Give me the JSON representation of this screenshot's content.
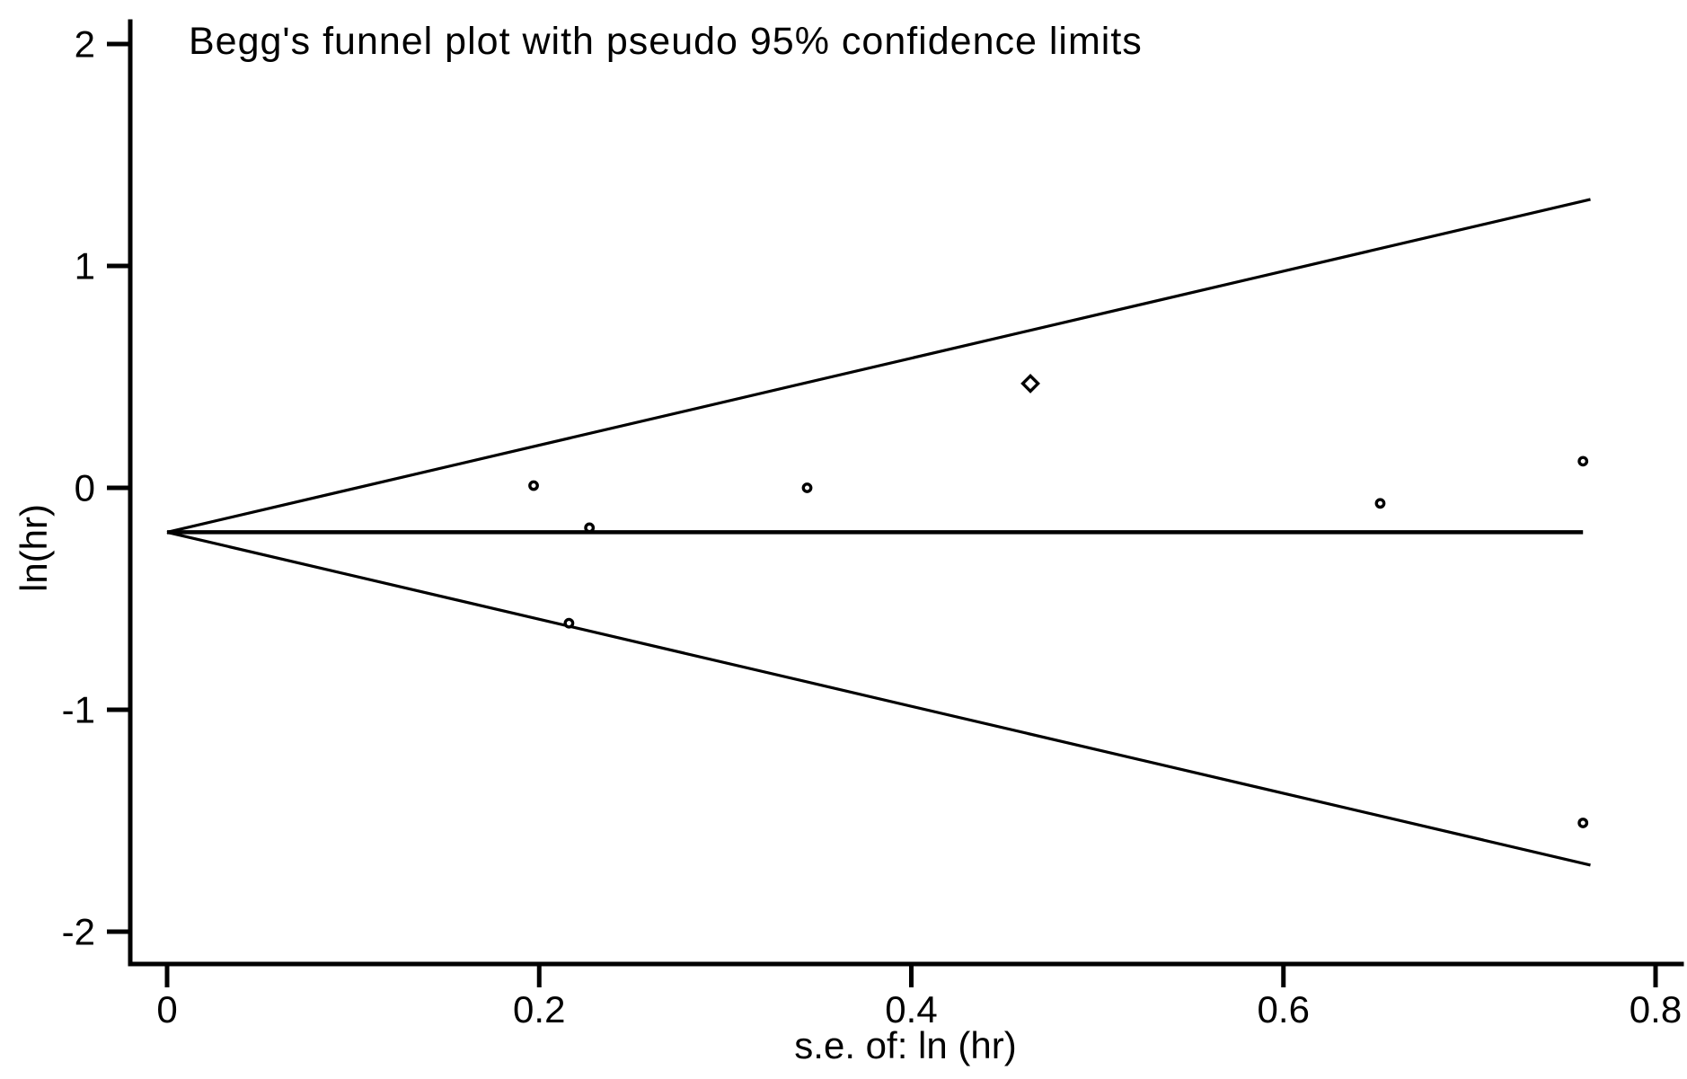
{
  "chart_data": {
    "type": "scatter",
    "title": "Begg's funnel plot with pseudo 95% confidence limits",
    "xlabel": "s.e. of: ln (hr)",
    "ylabel": "ln(hr)",
    "xlim": [
      -0.02,
      0.815
    ],
    "ylim": [
      -2.15,
      2.1
    ],
    "grid": false,
    "legend": "none",
    "x_ticks": {
      "values": [
        0,
        0.2,
        0.4,
        0.6,
        0.8
      ],
      "labels": [
        "0",
        "0.2",
        "0.4",
        "0.6",
        "0.8"
      ]
    },
    "y_ticks": {
      "values": [
        2,
        1,
        0,
        -1,
        -2
      ],
      "labels": [
        "2",
        "1",
        "0",
        "-1",
        "-2"
      ]
    },
    "points": [
      {
        "se": 0.197,
        "lnhr": 0.01,
        "marker": "circle"
      },
      {
        "se": 0.216,
        "lnhr": -0.61,
        "marker": "circle"
      },
      {
        "se": 0.227,
        "lnhr": -0.18,
        "marker": "circle"
      },
      {
        "se": 0.344,
        "lnhr": 0.0,
        "marker": "circle"
      },
      {
        "se": 0.464,
        "lnhr": 0.47,
        "marker": "diamond"
      },
      {
        "se": 0.652,
        "lnhr": -0.07,
        "marker": "circle"
      },
      {
        "se": 0.761,
        "lnhr": 0.12,
        "marker": "circle"
      },
      {
        "se": 0.761,
        "lnhr": -1.51,
        "marker": "circle"
      }
    ],
    "pooled_estimate_line": {
      "lnhr": -0.2,
      "se_start": 0,
      "se_end": 0.761
    },
    "pseudo_ci_limits": {
      "z": 1.96,
      "apex": {
        "se": 0,
        "lnhr": -0.2
      },
      "upper_end": {
        "se": 0.765,
        "lnhr": 1.3
      },
      "lower_end": {
        "se": 0.765,
        "lnhr": -1.7
      }
    },
    "colors": {
      "foreground": "#000000",
      "background": "#ffffff"
    }
  }
}
